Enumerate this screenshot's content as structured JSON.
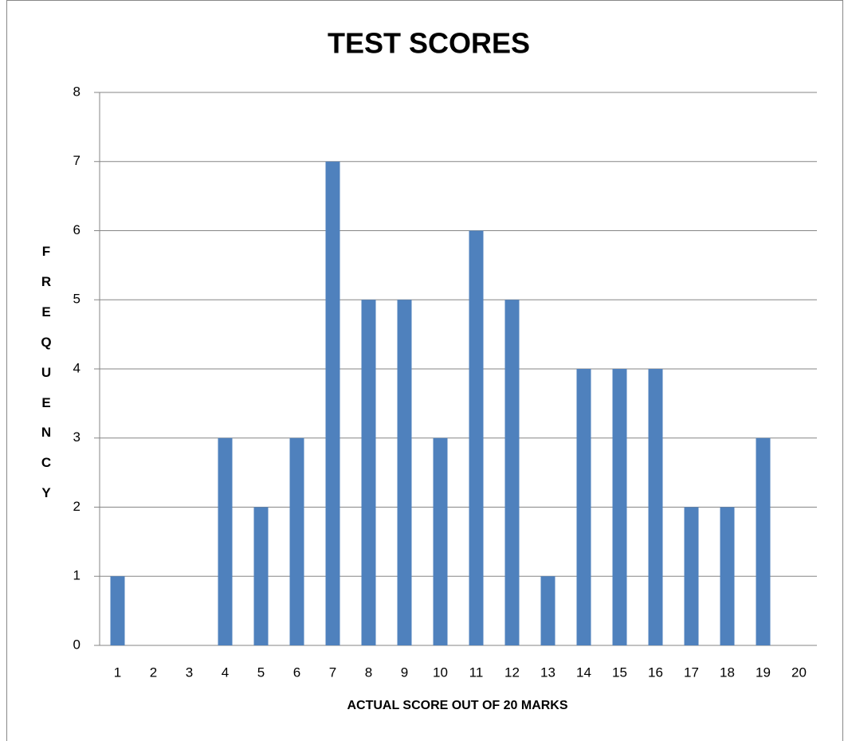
{
  "chart_data": {
    "type": "bar",
    "title": "TEST SCORES",
    "x_label": "ACTUAL SCORE OUT OF 20 MARKS",
    "y_label": "FREQUENCY",
    "categories": [
      "1",
      "2",
      "3",
      "4",
      "5",
      "6",
      "7",
      "8",
      "9",
      "10",
      "11",
      "12",
      "13",
      "14",
      "15",
      "16",
      "17",
      "18",
      "19",
      "20"
    ],
    "values": [
      1,
      0,
      0,
      3,
      2,
      3,
      7,
      5,
      5,
      3,
      6,
      5,
      1,
      4,
      4,
      4,
      2,
      2,
      3,
      0
    ],
    "color": "#4f81bd",
    "ylim": [
      0,
      8
    ],
    "yticks": [
      0,
      1,
      2,
      3,
      4,
      5,
      6,
      7,
      8
    ],
    "grid": true
  }
}
